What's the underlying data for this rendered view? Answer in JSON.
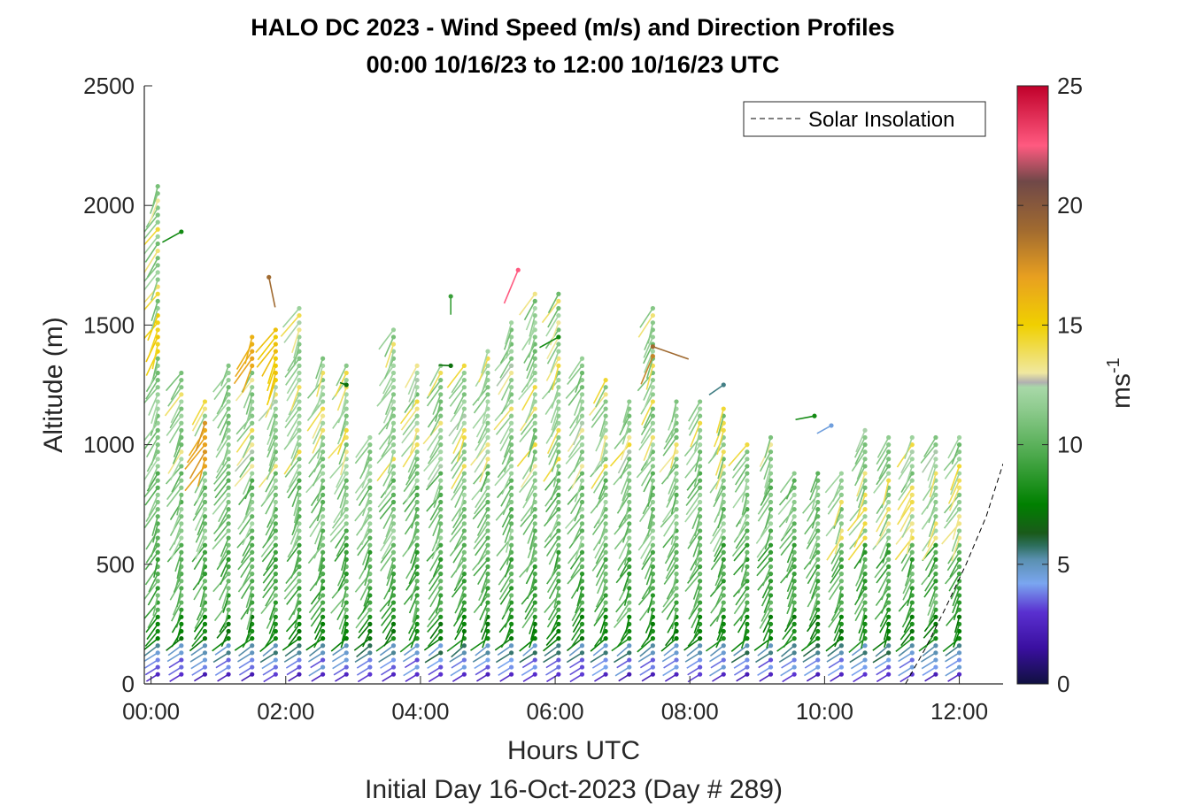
{
  "chart_data": {
    "type": "scatter",
    "title": "HALO DC 2023 - Wind Speed (m/s) and Direction Profiles",
    "subtitle": "00:00 10/16/23 to 12:00 10/16/23  UTC",
    "xlabel": "Hours UTC",
    "xlabel2": "Initial Day 16-Oct-2023 (Day # 289)",
    "ylabel": "Altitude (m)",
    "xlim": [
      -0.1,
      12.65
    ],
    "ylim": [
      0,
      2500
    ],
    "x_ticks": [
      0,
      2,
      4,
      6,
      8,
      10,
      12
    ],
    "x_tick_labels": [
      "00:00",
      "02:00",
      "04:00",
      "06:00",
      "08:00",
      "10:00",
      "12:00"
    ],
    "y_ticks": [
      0,
      500,
      1000,
      1500,
      2000,
      2500
    ],
    "y_tick_labels": [
      "0",
      "500",
      "1000",
      "1500",
      "2000",
      "2500"
    ],
    "colorbar": {
      "label": "ms",
      "label_exponent": "-1",
      "range": [
        0,
        25
      ],
      "ticks": [
        0,
        5,
        10,
        15,
        20,
        25
      ],
      "tick_labels": [
        "0",
        "5",
        "10",
        "15",
        "20",
        "25"
      ],
      "stops": [
        {
          "v": 0,
          "c": "#101040"
        },
        {
          "v": 1.5,
          "c": "#3a0fa0"
        },
        {
          "v": 3,
          "c": "#5a30d0"
        },
        {
          "v": 4.2,
          "c": "#7aa6f0"
        },
        {
          "v": 5.2,
          "c": "#5a90b0"
        },
        {
          "v": 5.8,
          "c": "#2c6e5a"
        },
        {
          "v": 6.3,
          "c": "#1a5a1a"
        },
        {
          "v": 7.5,
          "c": "#008000"
        },
        {
          "v": 9.5,
          "c": "#4aa84a"
        },
        {
          "v": 11.5,
          "c": "#8ecb8e"
        },
        {
          "v": 12.4,
          "c": "#a8d8a8"
        },
        {
          "v": 12.6,
          "c": "#b0b0b0"
        },
        {
          "v": 13.0,
          "c": "#f0e8a0"
        },
        {
          "v": 15,
          "c": "#f0d000"
        },
        {
          "v": 17,
          "c": "#e8a020"
        },
        {
          "v": 19,
          "c": "#a06a30"
        },
        {
          "v": 21,
          "c": "#704848"
        },
        {
          "v": 22.5,
          "c": "#ff5a80"
        },
        {
          "v": 25,
          "c": "#c0002a"
        }
      ]
    },
    "legend": {
      "position": "top-right",
      "entries": [
        "Solar Insolation"
      ]
    },
    "solar_insolation": {
      "x": [
        -0.1,
        11.2,
        11.3,
        11.5,
        11.8,
        12.1,
        12.4,
        12.65
      ],
      "y": [
        0,
        0,
        50,
        150,
        320,
        500,
        700,
        920
      ]
    },
    "profile_times": [
      0.1,
      0.45,
      0.8,
      1.15,
      1.5,
      1.85,
      2.2,
      2.55,
      2.9,
      3.25,
      3.6,
      3.95,
      4.3,
      4.65,
      5.0,
      5.35,
      5.7,
      6.05,
      6.4,
      6.75,
      7.1,
      7.45,
      7.8,
      8.15,
      8.5,
      8.85,
      9.2,
      9.55,
      9.9,
      10.25,
      10.6,
      10.95,
      11.3,
      11.65,
      12.0
    ],
    "profile_tops": [
      2100,
      1300,
      1200,
      1350,
      1450,
      1500,
      1570,
      1370,
      1330,
      1050,
      1500,
      1330,
      1330,
      1330,
      1400,
      1530,
      1650,
      1630,
      1360,
      1280,
      1200,
      1580,
      1200,
      1200,
      1150,
      1000,
      1050,
      900,
      900,
      900,
      1080,
      1050,
      1050,
      1050,
      1050
    ],
    "range_gate_m": 30,
    "profiles_note_speed_layers_ms": {
      "surface_below_80m": 3,
      "80_to_160m": 4.5,
      "160_to_300m": 7.5,
      "300_to_800m": 9.5,
      "above_800m": 11
    },
    "isolated_barbs": [
      {
        "x": 0.45,
        "y": 1890,
        "speed": 8,
        "dir": 290
      },
      {
        "x": 1.75,
        "y": 1700,
        "speed": 19,
        "dir": 10
      },
      {
        "x": 4.45,
        "y": 1620,
        "speed": 9,
        "dir": 0
      },
      {
        "x": 5.45,
        "y": 1730,
        "speed": 22.5,
        "dir": 340
      },
      {
        "x": 6.05,
        "y": 1450,
        "speed": 8,
        "dir": 290
      },
      {
        "x": 7.45,
        "y": 1410,
        "speed": 19,
        "dir": 90
      },
      {
        "x": 7.45,
        "y": 1370,
        "speed": 18,
        "dir": 340
      },
      {
        "x": 8.5,
        "y": 1250,
        "speed": 5.5,
        "dir": 300
      },
      {
        "x": 9.85,
        "y": 1120,
        "speed": 8,
        "dir": 250
      },
      {
        "x": 10.1,
        "y": 1080,
        "speed": 4.5,
        "dir": 290
      },
      {
        "x": 2.9,
        "y": 1250,
        "speed": 7,
        "dir": 200
      },
      {
        "x": 4.45,
        "y": 1330,
        "speed": 7,
        "dir": 220
      }
    ]
  }
}
